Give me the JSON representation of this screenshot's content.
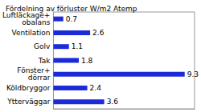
{
  "chart_data": {
    "type": "bar",
    "title": "Fördelning av förluster W/m2 Atemp",
    "orientation": "horizontal",
    "categories": [
      "Luftläckage+\nobalans",
      "Ventilation",
      "Golv",
      "Tak",
      "Fönster+\ndörrar",
      "Köldbryggor",
      "Ytterväggar"
    ],
    "values": [
      0.7,
      2.6,
      1.1,
      1.8,
      9.3,
      2.4,
      3.6
    ],
    "color": "#1c2bd8",
    "xlim": [
      0,
      10
    ],
    "xticks": [
      0,
      10
    ],
    "grid": false,
    "data_labels": true,
    "tick_labels": "y"
  }
}
